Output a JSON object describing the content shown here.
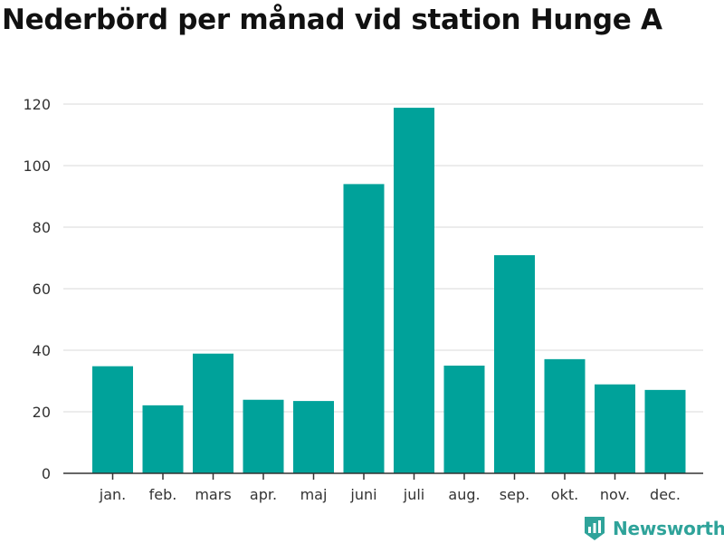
{
  "colors": {
    "bar": "#00a29a",
    "grid": "#d9d9d9",
    "axis": "#333333",
    "brand": "#2fa39a"
  },
  "chart_data": {
    "type": "bar",
    "title": "Nederbörd per månad vid station Hunge A",
    "xlabel": "",
    "ylabel": "",
    "categories": [
      "jan.",
      "feb.",
      "mars",
      "apr.",
      "maj",
      "juni",
      "juli",
      "aug.",
      "sep.",
      "okt.",
      "nov.",
      "dec."
    ],
    "values": [
      34.8,
      22.1,
      38.9,
      23.9,
      23.5,
      94.0,
      118.8,
      35.0,
      70.9,
      37.1,
      28.9,
      27.1
    ],
    "ylim": [
      0,
      120
    ],
    "yticks": [
      0,
      20,
      40,
      60,
      80,
      100,
      120
    ],
    "grid": true,
    "legend": "none"
  },
  "logo": {
    "icon": "bar-chart-shield-icon",
    "text": "Newsworthy"
  }
}
